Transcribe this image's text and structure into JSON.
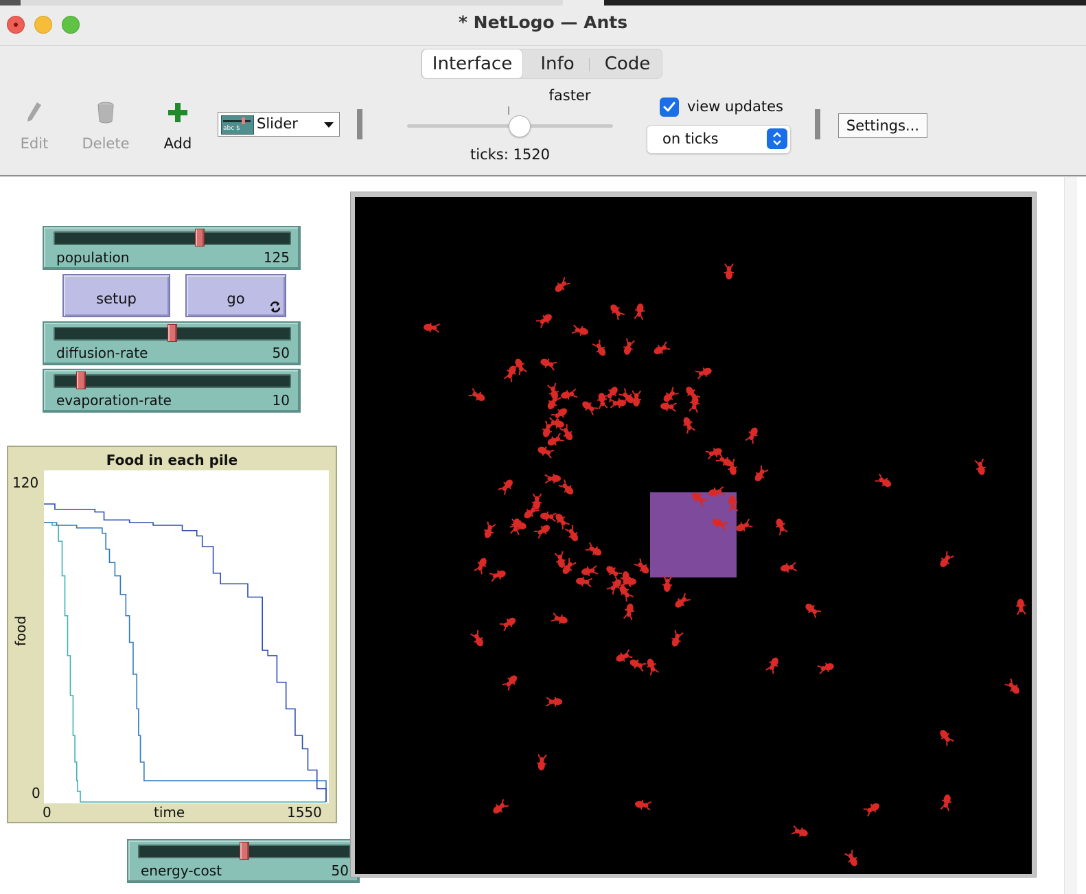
{
  "window": {
    "title": "* NetLogo — Ants"
  },
  "tabs": [
    {
      "label": "Interface",
      "active": true
    },
    {
      "label": "Info"
    },
    {
      "label": "Code"
    }
  ],
  "toolbar": {
    "edit_label": "Edit",
    "delete_label": "Delete",
    "add_label": "Add",
    "widget_type": "Slider",
    "speed_label": "faster",
    "ticks_label": "ticks: 1520",
    "view_updates_label": "view updates",
    "view_updates_checked": true,
    "update_mode": "on ticks",
    "settings_label": "Settings..."
  },
  "sliders": {
    "population": {
      "name": "population",
      "value": "125",
      "fraction": 0.62
    },
    "diffusion": {
      "name": "diffusion-rate",
      "value": "50",
      "fraction": 0.5
    },
    "evaporation": {
      "name": "evaporation-rate",
      "value": "10",
      "fraction": 0.1
    },
    "energy": {
      "name": "energy-cost",
      "value": "50",
      "fraction": 0.5
    }
  },
  "buttons": {
    "setup_label": "setup",
    "go_label": "go",
    "go_forever": true
  },
  "plot": {
    "title": "Food in each pile",
    "ylabel": "food",
    "xlabel": "time",
    "xmin_label": "0",
    "xmax_label": "1550",
    "ymin_label": "0",
    "ymax_label": "120"
  },
  "chart_data": {
    "type": "line",
    "title": "Food in each pile",
    "xlabel": "time",
    "ylabel": "food",
    "xlim": [
      0,
      1550
    ],
    "ylim": [
      0,
      120
    ],
    "series": [
      {
        "color": "#3fb0b8",
        "x": [
          0,
          45,
          80,
          100,
          115,
          130,
          145,
          160,
          170,
          180,
          185,
          200,
          1550
        ],
        "y": [
          105,
          104,
          98,
          85,
          70,
          55,
          40,
          25,
          15,
          8,
          4,
          0,
          0
        ]
      },
      {
        "color": "#2e79c0",
        "x": [
          0,
          70,
          180,
          320,
          340,
          360,
          390,
          420,
          450,
          470,
          490,
          510,
          520,
          530,
          550,
          1550
        ],
        "y": [
          105,
          104,
          103,
          101,
          95,
          90,
          85,
          78,
          70,
          60,
          48,
          35,
          25,
          15,
          8,
          0
        ]
      },
      {
        "color": "#2a4db0",
        "x": [
          0,
          60,
          280,
          330,
          470,
          600,
          760,
          840,
          870,
          930,
          970,
          1080,
          1120,
          1200,
          1230,
          1280,
          1330,
          1380,
          1420,
          1450,
          1500,
          1550
        ],
        "y": [
          112,
          110,
          109,
          106,
          105,
          104,
          102,
          100,
          96,
          86,
          82,
          82,
          77,
          57,
          55,
          45,
          35,
          25,
          20,
          12,
          5,
          0
        ]
      }
    ]
  },
  "colors": {
    "slider_bg": "#89c1b7",
    "button_bg": "#bdbde6",
    "plot_bg": "#e0dfb8",
    "ant": "#d92a27",
    "nest": "#7d4a9c",
    "world_bg": "#000000",
    "accent": "#1a6ee8"
  },
  "icons": {
    "edit": "pencil-icon",
    "delete": "trash-can-icon",
    "add": "plus-icon",
    "forever": "repeat-icon"
  }
}
